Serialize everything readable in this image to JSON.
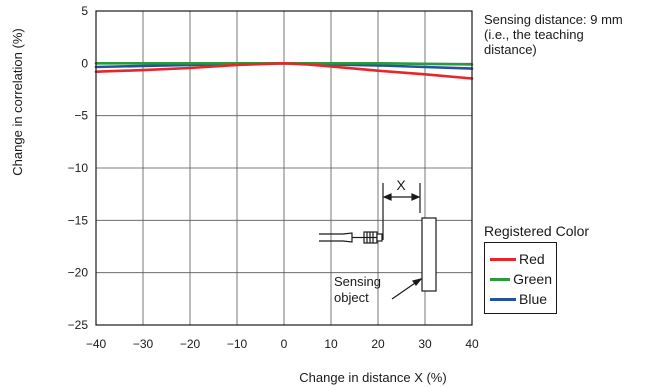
{
  "chart_data": {
    "type": "line",
    "xlabel": "Change in distance X (%)",
    "ylabel": "Change in correlation (%)",
    "xlim": [
      -40,
      40
    ],
    "ylim": [
      -25,
      5
    ],
    "xticks": [
      -40,
      -30,
      -20,
      -10,
      0,
      10,
      20,
      30,
      40
    ],
    "yticks": [
      5,
      0,
      -5,
      -10,
      -15,
      -20,
      -25
    ],
    "xtick_labels": [
      "−40",
      "−30",
      "−20",
      "−10",
      "0",
      "10",
      "20",
      "30",
      "40"
    ],
    "ytick_labels": [
      "5",
      "0",
      "−5",
      "−10",
      "−15",
      "−20",
      "−25"
    ],
    "grid": true,
    "legend_position": "right",
    "legend_title": "Registered Color",
    "series": [
      {
        "name": "Red",
        "color": "#e8262a",
        "x": [
          -40,
          -30,
          -20,
          -10,
          0,
          5,
          10,
          15,
          20,
          30,
          40
        ],
        "y": [
          -0.8,
          -0.65,
          -0.45,
          -0.15,
          0,
          -0.1,
          -0.3,
          -0.5,
          -0.7,
          -1.05,
          -1.45
        ]
      },
      {
        "name": "Green",
        "color": "#2a9a3a",
        "x": [
          -40,
          -20,
          0,
          20,
          40
        ],
        "y": [
          0,
          0,
          0,
          0,
          -0.1
        ]
      },
      {
        "name": "Blue",
        "color": "#2450a6",
        "x": [
          -40,
          -30,
          -20,
          -10,
          0,
          10,
          20,
          30,
          40
        ],
        "y": [
          -0.35,
          -0.25,
          -0.15,
          -0.05,
          0,
          -0.1,
          -0.2,
          -0.35,
          -0.5
        ]
      }
    ],
    "annotations": {
      "teaching_note_lines": [
        "Sensing distance: 9 mm",
        "(i.e., the teaching",
        "distance)"
      ],
      "diagram_x_label": "X",
      "sensing_object_label": [
        "Sensing",
        "object"
      ]
    }
  }
}
